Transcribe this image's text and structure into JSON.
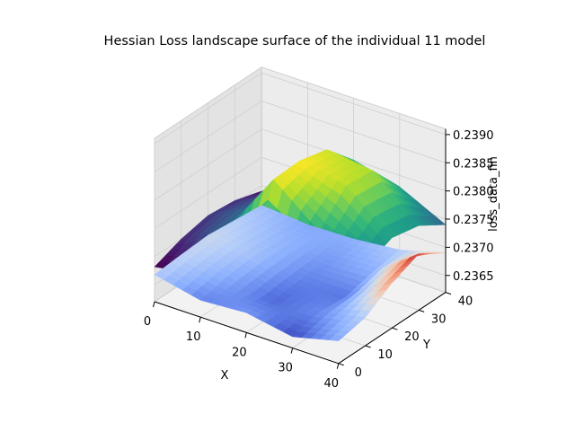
{
  "chart_data": {
    "type": "surface3d",
    "title": "Hessian Loss landscape surface of the individual 11 model",
    "xlabel": "X",
    "ylabel": "Y",
    "zlabel": "loss_data_fin",
    "x_ticks": [
      "0",
      "10",
      "20",
      "30",
      "40"
    ],
    "y_ticks": [
      "0",
      "10",
      "20",
      "30",
      "40"
    ],
    "z_ticks": [
      "0.2365",
      "0.2370",
      "0.2375",
      "0.2380",
      "0.2385",
      "0.2390"
    ],
    "xlim": [
      0,
      40
    ],
    "ylim": [
      0,
      40
    ],
    "zlim": [
      0.2362,
      0.2391
    ],
    "grid": true,
    "colormaps": [
      "viridis",
      "coolwarm"
    ],
    "series": [
      {
        "colormap": "viridis",
        "rows_y": [
          0,
          10,
          20,
          30,
          40
        ],
        "cols_x": [
          0,
          10,
          20,
          30,
          40
        ],
        "z": [
          [
            0.23682,
            0.23695,
            0.23712,
            0.23705,
            0.2369
          ],
          [
            0.237,
            0.23745,
            0.2386,
            0.23795,
            0.2376
          ],
          [
            0.2371,
            0.2375,
            0.23862,
            0.23845,
            0.2378
          ],
          [
            0.23705,
            0.2374,
            0.2385,
            0.2384,
            0.2377
          ],
          [
            0.2369,
            0.2372,
            0.238,
            0.2378,
            0.2374
          ]
        ]
      },
      {
        "colormap": "coolwarm",
        "rows_y": [
          0,
          10,
          20,
          30,
          40
        ],
        "cols_x": [
          0,
          10,
          20,
          30,
          40
        ],
        "z": [
          [
            0.23668,
            0.2365,
            0.23655,
            0.2364,
            0.2366
          ],
          [
            0.23672,
            0.2366,
            0.23645,
            0.23652,
            0.2367
          ],
          [
            0.23675,
            0.23665,
            0.2365,
            0.23648,
            0.237
          ],
          [
            0.2367,
            0.23662,
            0.23655,
            0.2366,
            0.2372
          ],
          [
            0.23665,
            0.23658,
            0.2366,
            0.23668,
            0.2369
          ]
        ]
      }
    ]
  }
}
